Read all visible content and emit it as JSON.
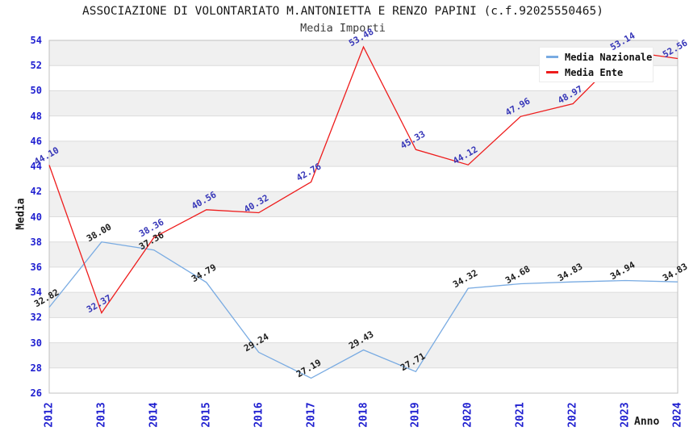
{
  "title": "ASSOCIAZIONE DI VOLONTARIATO M.ANTONIETTA E RENZO PAPINI (c.f.92025550465)",
  "subtitle": "Media Importi",
  "axes": {
    "y_label": "Media",
    "x_label": "Anno",
    "y_ticks": [
      26,
      28,
      30,
      32,
      34,
      36,
      38,
      40,
      42,
      44,
      46,
      48,
      50,
      52,
      54
    ],
    "x_ticks": [
      "2012",
      "2013",
      "2014",
      "2015",
      "2016",
      "2017",
      "2018",
      "2019",
      "2020",
      "2021",
      "2022",
      "2023",
      "2024"
    ]
  },
  "legend": [
    {
      "label": "Media Nazionale",
      "color": "#79abe2"
    },
    {
      "label": "Media Ente",
      "color": "#ee1c1c"
    }
  ],
  "colors": {
    "band": "#f0f0f0",
    "grid": "#dcdcdc",
    "border": "#c0c0c0",
    "tick_label": "#1f1fd0",
    "label_nazionale": "#1c1c1c",
    "label_ente": "#3737b8"
  },
  "chart_data": {
    "type": "line",
    "x": [
      2012,
      2013,
      2014,
      2015,
      2016,
      2017,
      2018,
      2019,
      2020,
      2021,
      2022,
      2023,
      2024
    ],
    "series": [
      {
        "name": "Media Nazionale",
        "color": "#79abe2",
        "label_color": "#1c1c1c",
        "values": [
          32.82,
          38.0,
          37.36,
          34.79,
          29.24,
          27.19,
          29.43,
          27.71,
          34.32,
          34.68,
          34.83,
          34.94,
          34.83
        ]
      },
      {
        "name": "Media Ente",
        "color": "#ee1c1c",
        "label_color": "#3737b8",
        "values": [
          44.1,
          32.37,
          38.36,
          40.56,
          40.32,
          42.76,
          53.48,
          45.33,
          44.12,
          47.96,
          48.97,
          53.14,
          52.56
        ]
      }
    ],
    "title": "Media Importi",
    "xlabel": "Anno",
    "ylabel": "Media",
    "ylim": [
      26,
      54
    ],
    "grid": true,
    "legend_position": "top-right"
  }
}
